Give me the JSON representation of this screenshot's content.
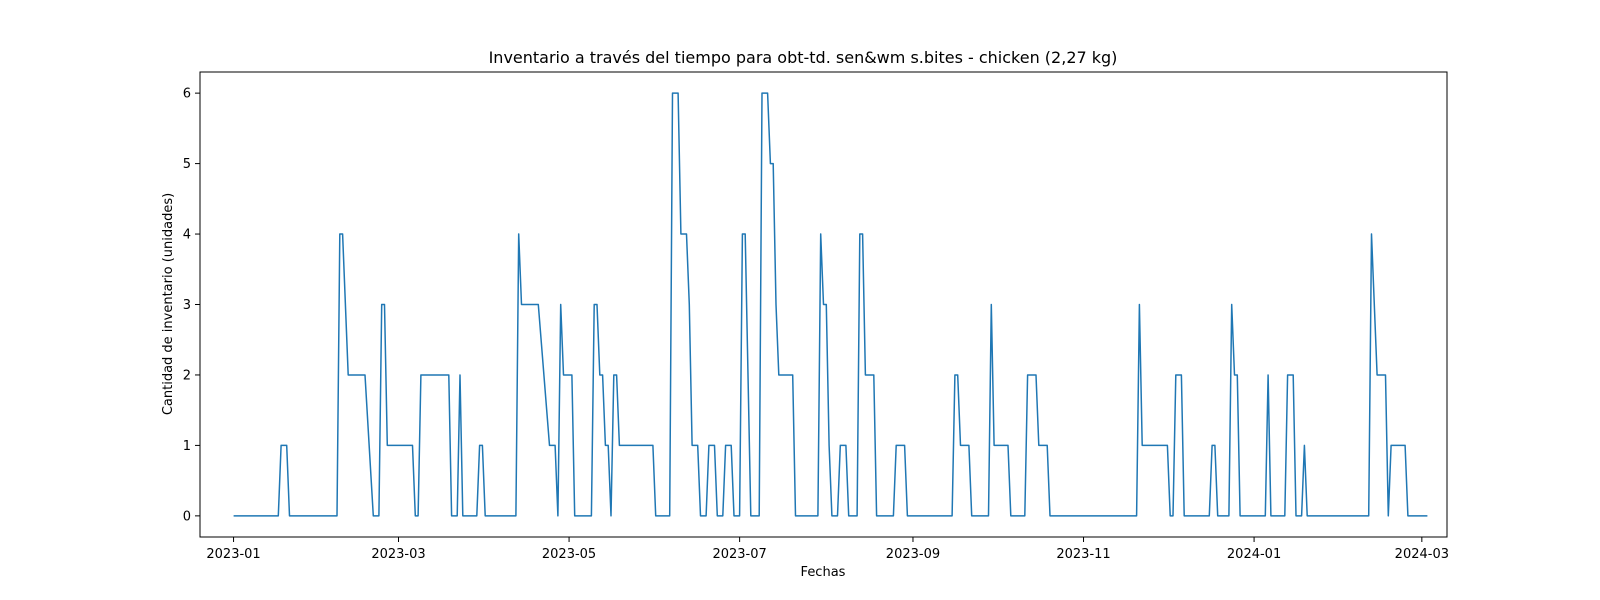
{
  "chart_data": {
    "type": "line",
    "title": "Inventario a través del tiempo para obt-td. sen&wm s.bites - chicken (2,27 kg)",
    "xlabel": "Fechas",
    "ylabel": "Cantidad de inventario (unidades)",
    "x_ticks": [
      "2023-01",
      "2023-03",
      "2023-05",
      "2023-07",
      "2023-09",
      "2023-11",
      "2024-01",
      "2024-03"
    ],
    "y_ticks": [
      "0",
      "1",
      "2",
      "3",
      "4",
      "5",
      "6"
    ],
    "xlim": [
      "2022-12-20",
      "2024-03-10"
    ],
    "ylim": [
      -0.3,
      6.3
    ],
    "grid": false,
    "series": [
      {
        "color": "#1f77b4",
        "points": [
          [
            "2023-01-01",
            0
          ],
          [
            "2023-01-17",
            0
          ],
          [
            "2023-01-18",
            1
          ],
          [
            "2023-01-20",
            1
          ],
          [
            "2023-01-21",
            0
          ],
          [
            "2023-02-07",
            0
          ],
          [
            "2023-02-08",
            4
          ],
          [
            "2023-02-09",
            4
          ],
          [
            "2023-02-11",
            2
          ],
          [
            "2023-02-17",
            2
          ],
          [
            "2023-02-20",
            0
          ],
          [
            "2023-02-22",
            0
          ],
          [
            "2023-02-23",
            3
          ],
          [
            "2023-02-24",
            3
          ],
          [
            "2023-02-25",
            1
          ],
          [
            "2023-03-06",
            1
          ],
          [
            "2023-03-07",
            0
          ],
          [
            "2023-03-08",
            0
          ],
          [
            "2023-03-09",
            2
          ],
          [
            "2023-03-19",
            2
          ],
          [
            "2023-03-20",
            0
          ],
          [
            "2023-03-22",
            0
          ],
          [
            "2023-03-23",
            2
          ],
          [
            "2023-03-24",
            0
          ],
          [
            "2023-03-29",
            0
          ],
          [
            "2023-03-30",
            1
          ],
          [
            "2023-03-31",
            1
          ],
          [
            "2023-04-01",
            0
          ],
          [
            "2023-04-12",
            0
          ],
          [
            "2023-04-13",
            4
          ],
          [
            "2023-04-14",
            3
          ],
          [
            "2023-04-20",
            3
          ],
          [
            "2023-04-24",
            1
          ],
          [
            "2023-04-26",
            1
          ],
          [
            "2023-04-27",
            0
          ],
          [
            "2023-04-28",
            3
          ],
          [
            "2023-04-29",
            2
          ],
          [
            "2023-05-02",
            2
          ],
          [
            "2023-05-03",
            0
          ],
          [
            "2023-05-09",
            0
          ],
          [
            "2023-05-10",
            3
          ],
          [
            "2023-05-11",
            3
          ],
          [
            "2023-05-12",
            2
          ],
          [
            "2023-05-13",
            2
          ],
          [
            "2023-05-14",
            1
          ],
          [
            "2023-05-15",
            1
          ],
          [
            "2023-05-16",
            0
          ],
          [
            "2023-05-17",
            2
          ],
          [
            "2023-05-18",
            2
          ],
          [
            "2023-05-19",
            1
          ],
          [
            "2023-05-31",
            1
          ],
          [
            "2023-06-01",
            0
          ],
          [
            "2023-06-06",
            0
          ],
          [
            "2023-06-07",
            6
          ],
          [
            "2023-06-09",
            6
          ],
          [
            "2023-06-10",
            4
          ],
          [
            "2023-06-12",
            4
          ],
          [
            "2023-06-13",
            3
          ],
          [
            "2023-06-14",
            1
          ],
          [
            "2023-06-16",
            1
          ],
          [
            "2023-06-17",
            0
          ],
          [
            "2023-06-19",
            0
          ],
          [
            "2023-06-20",
            1
          ],
          [
            "2023-06-22",
            1
          ],
          [
            "2023-06-23",
            0
          ],
          [
            "2023-06-25",
            0
          ],
          [
            "2023-06-26",
            1
          ],
          [
            "2023-06-28",
            1
          ],
          [
            "2023-06-29",
            0
          ],
          [
            "2023-07-01",
            0
          ],
          [
            "2023-07-02",
            4
          ],
          [
            "2023-07-03",
            4
          ],
          [
            "2023-07-05",
            0
          ],
          [
            "2023-07-08",
            0
          ],
          [
            "2023-07-09",
            6
          ],
          [
            "2023-07-11",
            6
          ],
          [
            "2023-07-12",
            5
          ],
          [
            "2023-07-13",
            5
          ],
          [
            "2023-07-14",
            3
          ],
          [
            "2023-07-15",
            2
          ],
          [
            "2023-07-20",
            2
          ],
          [
            "2023-07-21",
            0
          ],
          [
            "2023-07-29",
            0
          ],
          [
            "2023-07-30",
            4
          ],
          [
            "2023-07-31",
            3
          ],
          [
            "2023-08-01",
            3
          ],
          [
            "2023-08-02",
            1
          ],
          [
            "2023-08-03",
            0
          ],
          [
            "2023-08-05",
            0
          ],
          [
            "2023-08-06",
            1
          ],
          [
            "2023-08-08",
            1
          ],
          [
            "2023-08-09",
            0
          ],
          [
            "2023-08-12",
            0
          ],
          [
            "2023-08-13",
            4
          ],
          [
            "2023-08-14",
            4
          ],
          [
            "2023-08-15",
            2
          ],
          [
            "2023-08-18",
            2
          ],
          [
            "2023-08-19",
            0
          ],
          [
            "2023-08-25",
            0
          ],
          [
            "2023-08-26",
            1
          ],
          [
            "2023-08-29",
            1
          ],
          [
            "2023-08-30",
            0
          ],
          [
            "2023-09-15",
            0
          ],
          [
            "2023-09-16",
            2
          ],
          [
            "2023-09-17",
            2
          ],
          [
            "2023-09-18",
            1
          ],
          [
            "2023-09-21",
            1
          ],
          [
            "2023-09-22",
            0
          ],
          [
            "2023-09-28",
            0
          ],
          [
            "2023-09-29",
            3
          ],
          [
            "2023-09-30",
            1
          ],
          [
            "2023-10-05",
            1
          ],
          [
            "2023-10-06",
            0
          ],
          [
            "2023-10-11",
            0
          ],
          [
            "2023-10-12",
            2
          ],
          [
            "2023-10-15",
            2
          ],
          [
            "2023-10-16",
            1
          ],
          [
            "2023-10-19",
            1
          ],
          [
            "2023-10-20",
            0
          ],
          [
            "2023-11-20",
            0
          ],
          [
            "2023-11-21",
            3
          ],
          [
            "2023-11-22",
            1
          ],
          [
            "2023-12-01",
            1
          ],
          [
            "2023-12-02",
            0
          ],
          [
            "2023-12-03",
            0
          ],
          [
            "2023-12-04",
            2
          ],
          [
            "2023-12-06",
            2
          ],
          [
            "2023-12-07",
            0
          ],
          [
            "2023-12-16",
            0
          ],
          [
            "2023-12-17",
            1
          ],
          [
            "2023-12-18",
            1
          ],
          [
            "2023-12-19",
            0
          ],
          [
            "2023-12-23",
            0
          ],
          [
            "2023-12-24",
            3
          ],
          [
            "2023-12-25",
            2
          ],
          [
            "2023-12-26",
            2
          ],
          [
            "2023-12-27",
            0
          ],
          [
            "2024-01-05",
            0
          ],
          [
            "2024-01-06",
            2
          ],
          [
            "2024-01-07",
            0
          ],
          [
            "2024-01-12",
            0
          ],
          [
            "2024-01-13",
            2
          ],
          [
            "2024-01-15",
            2
          ],
          [
            "2024-01-16",
            0
          ],
          [
            "2024-01-18",
            0
          ],
          [
            "2024-01-19",
            1
          ],
          [
            "2024-01-20",
            0
          ],
          [
            "2024-02-11",
            0
          ],
          [
            "2024-02-12",
            4
          ],
          [
            "2024-02-14",
            2
          ],
          [
            "2024-02-17",
            2
          ],
          [
            "2024-02-18",
            0
          ],
          [
            "2024-02-19",
            1
          ],
          [
            "2024-02-24",
            1
          ],
          [
            "2024-02-25",
            0
          ],
          [
            "2024-03-03",
            0
          ]
        ]
      }
    ]
  }
}
